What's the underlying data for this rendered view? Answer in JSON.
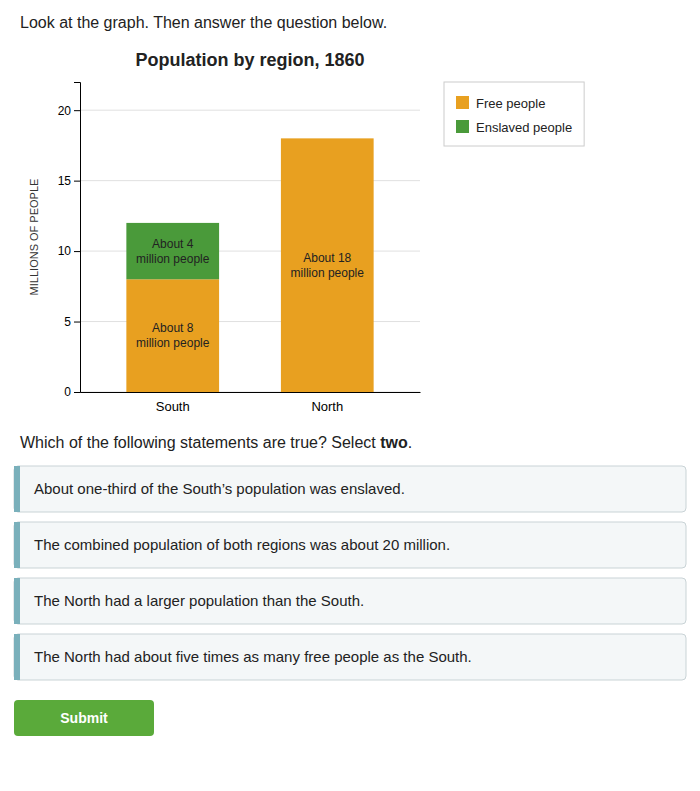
{
  "header": "Look at the graph. Then answer the question below.",
  "chart_data": {
    "type": "bar",
    "title": "Population by region, 1860",
    "ylabel": "MILLIONS OF PEOPLE",
    "categories": [
      "South",
      "North"
    ],
    "series": [
      {
        "name": "Free people",
        "color": "#E8A020",
        "values": [
          8,
          18
        ]
      },
      {
        "name": "Enslaved people",
        "color": "#4A9A3A",
        "values": [
          4,
          0
        ]
      }
    ],
    "stacked": true,
    "ylim": [
      0,
      22
    ],
    "yticks": [
      0,
      5,
      10,
      15,
      20
    ],
    "grid": true,
    "legend": "right",
    "annotations": [
      {
        "text": "About 8\nmillion people",
        "category": "South",
        "series": "Free people"
      },
      {
        "text": "About 4\nmillion people",
        "category": "South",
        "series": "Enslaved people"
      },
      {
        "text": "About 18\nmillion people",
        "category": "North",
        "series": "Free people"
      }
    ]
  },
  "question": {
    "text": "Which of the following statements are true? Select ",
    "bold": "two",
    "end": "."
  },
  "statements": [
    "About one-third of the South’s population was enslaved.",
    "The combined population of both regions was about 20 million.",
    "The North had a larger population than the South.",
    "The North had about five times as many free people as the South."
  ],
  "submit_label": "Submit"
}
